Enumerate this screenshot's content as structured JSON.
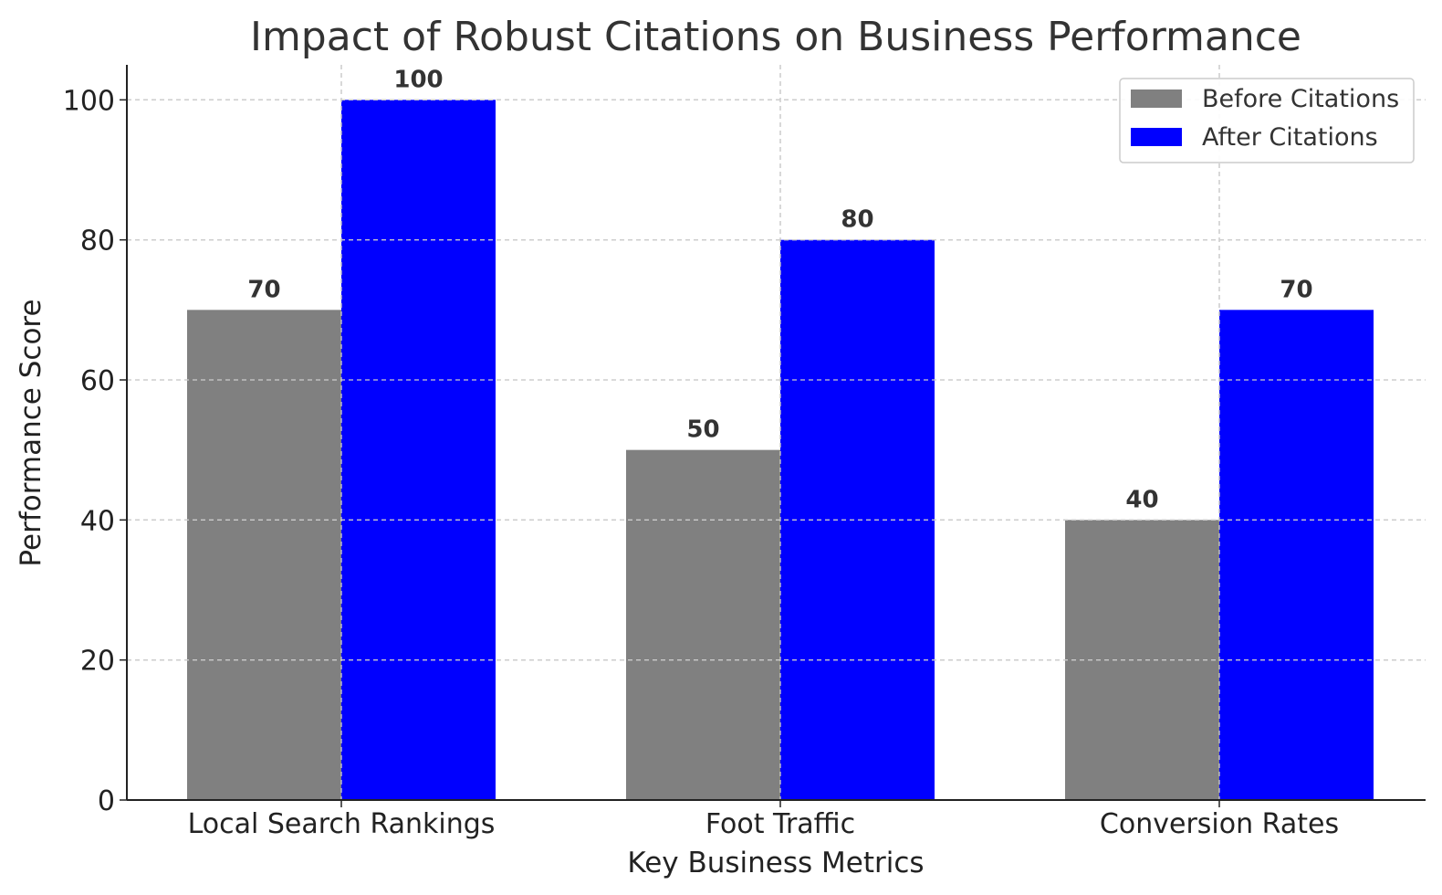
{
  "chart_data": {
    "type": "bar",
    "title": "Impact of Robust Citations on Business Performance",
    "xlabel": "Key Business Metrics",
    "ylabel": "Performance Score",
    "categories": [
      "Local Search Rankings",
      "Foot Traffic",
      "Conversion Rates"
    ],
    "series": [
      {
        "name": "Before Citations",
        "values": [
          70,
          50,
          40
        ],
        "color": "#808080"
      },
      {
        "name": "After Citations",
        "values": [
          100,
          80,
          70
        ],
        "color": "#0000ff"
      }
    ],
    "ylim": [
      0,
      105
    ],
    "yticks": [
      0,
      20,
      40,
      60,
      80,
      100
    ],
    "grid": true,
    "legend": "top-right"
  }
}
